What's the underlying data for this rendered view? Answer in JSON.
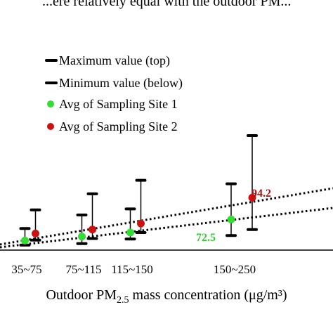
{
  "header_fragment": "...ere relatively equal with the outdoor PM...",
  "chart_data": {
    "type": "scatter",
    "categories": [
      "35~75",
      "75~115",
      "115~150",
      "150~250"
    ],
    "xlabel_main": "Outdoor PM",
    "xlabel_sub": "2.5",
    "xlabel_tail": " mass concentration  (μg/m³)",
    "ylabel": "",
    "series": [
      {
        "name": "Avg of Sampling Site 1",
        "color": "#33dd33",
        "avg": [
          51.5,
          55.5,
          59.5,
          72.5
        ],
        "max": [
          63.5,
          77.0,
          83.0,
          108.0
        ],
        "min": [
          47.0,
          48.5,
          53.0,
          56.5
        ]
      },
      {
        "name": "Avg of Sampling Site 2",
        "color": "#cc1111",
        "avg": [
          58.5,
          62.5,
          68.5,
          94.2
        ],
        "max": [
          82.0,
          98.0,
          111.5,
          156.0
        ],
        "min": [
          52.0,
          53.5,
          59.5,
          62.5
        ]
      }
    ],
    "value_labels": [
      {
        "text": "72.5",
        "color": "#33cc33"
      },
      {
        "text": "94.2",
        "color": "#aa1111"
      }
    ],
    "trendline_style": "dotted",
    "legend": [
      {
        "marker": "bar",
        "label": "Maximum value (top)"
      },
      {
        "marker": "bar",
        "label": "Minimum value (below)"
      },
      {
        "marker": "dot",
        "color": "#33dd33",
        "label": "Avg of Sampling Site 1"
      },
      {
        "marker": "dot",
        "color": "#cc1111",
        "label": "Avg of Sampling Site 2"
      }
    ],
    "legend_position": "top-left",
    "grid": false
  }
}
